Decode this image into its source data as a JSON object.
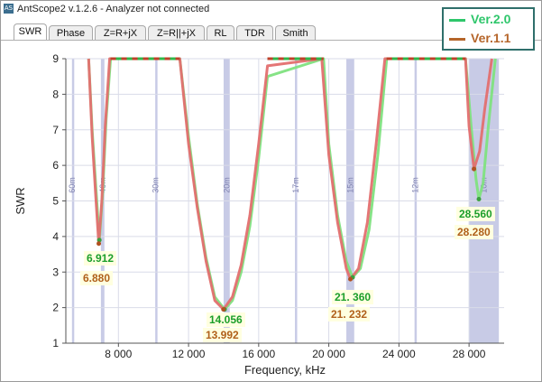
{
  "window": {
    "title": "AntScope2 v.1.2.6 - Analyzer not connected",
    "icon_text": "AS"
  },
  "tabs": [
    {
      "label": "SWR",
      "active": true
    },
    {
      "label": "Phase",
      "active": false
    },
    {
      "label": "Z=R+jX",
      "active": false
    },
    {
      "label": "Z=R||+jX",
      "active": false
    },
    {
      "label": "RL",
      "active": false
    },
    {
      "label": "TDR",
      "active": false
    },
    {
      "label": "Smith",
      "active": false
    }
  ],
  "legend": {
    "items": [
      {
        "label": "Ver.2.0",
        "color": "#2ec66b"
      },
      {
        "label": "Ver.1.1",
        "color": "#b5652a"
      }
    ]
  },
  "annotations": [
    {
      "id": "a1",
      "text": "6.912",
      "version": "v2"
    },
    {
      "id": "a2",
      "text": "6.880",
      "version": "v1"
    },
    {
      "id": "a3",
      "text": "14.056",
      "version": "v2"
    },
    {
      "id": "a4",
      "text": "13.992",
      "version": "v1"
    },
    {
      "id": "a5",
      "text": "21. 360",
      "version": "v2"
    },
    {
      "id": "a6",
      "text": "21. 232",
      "version": "v1"
    },
    {
      "id": "a7",
      "text": "28.560",
      "version": "v2"
    },
    {
      "id": "a8",
      "text": "28.280",
      "version": "v1"
    }
  ],
  "chart_data": {
    "type": "line",
    "title": "",
    "xlabel": "Frequency, kHz",
    "ylabel": "SWR",
    "xlim": [
      5000,
      30000
    ],
    "ylim": [
      1,
      9
    ],
    "x_ticks": [
      8000,
      12000,
      16000,
      20000,
      24000,
      28000
    ],
    "x_tick_labels": [
      "8 000",
      "12 000",
      "16 000",
      "20 000",
      "24 000",
      "28 000"
    ],
    "y_ticks": [
      1,
      2,
      3,
      4,
      5,
      6,
      7,
      8,
      9
    ],
    "grid": true,
    "bands": [
      {
        "label": "60m",
        "start": 5350,
        "end": 5370
      },
      {
        "label": "40m",
        "start": 7000,
        "end": 7200
      },
      {
        "label": "30m",
        "start": 10100,
        "end": 10150
      },
      {
        "label": "20m",
        "start": 14000,
        "end": 14350
      },
      {
        "label": "17m",
        "start": 18068,
        "end": 18168
      },
      {
        "label": "15m",
        "start": 21000,
        "end": 21450
      },
      {
        "label": "12m",
        "start": 24890,
        "end": 24990
      },
      {
        "label": "10m",
        "start": 28000,
        "end": 29700
      }
    ],
    "band_color": "#c8cbe6",
    "series": [
      {
        "name": "Ver.2.0",
        "color": "#7fe27f",
        "x": [
          6300,
          6500,
          6700,
          6912,
          7100,
          7300,
          7550,
          11500,
          12000,
          12500,
          13000,
          13500,
          14056,
          14500,
          15000,
          15500,
          16000,
          16500,
          19700,
          20000,
          20500,
          21000,
          21360,
          21800,
          22300,
          22800,
          23300,
          27800,
          28100,
          28400,
          28560,
          28800,
          29100,
          29500
        ],
        "y": [
          9.0,
          7.0,
          5.5,
          3.9,
          5.2,
          7.3,
          9.0,
          9.0,
          6.8,
          4.9,
          3.4,
          2.3,
          1.95,
          2.2,
          3.0,
          4.3,
          6.2,
          8.5,
          9.0,
          6.6,
          4.6,
          3.3,
          2.85,
          3.1,
          4.2,
          6.3,
          9.0,
          9.0,
          7.2,
          5.6,
          5.05,
          5.5,
          7.1,
          9.0
        ]
      },
      {
        "name": "Ver.1.1",
        "color": "#e36f6f",
        "x": [
          6300,
          6500,
          6700,
          6880,
          7050,
          7250,
          7500,
          11500,
          12000,
          12500,
          13000,
          13500,
          13992,
          14500,
          15000,
          15500,
          16000,
          16500,
          19600,
          20000,
          20500,
          21000,
          21232,
          21700,
          22200,
          22700,
          23200,
          27800,
          28000,
          28280,
          28600,
          28900,
          29300
        ],
        "y": [
          9.0,
          6.8,
          5.2,
          3.8,
          5.0,
          7.1,
          9.0,
          9.0,
          6.6,
          4.8,
          3.3,
          2.2,
          1.95,
          2.3,
          3.2,
          4.6,
          6.6,
          8.8,
          9.0,
          6.3,
          4.4,
          3.1,
          2.8,
          3.1,
          4.4,
          6.6,
          9.0,
          9.0,
          7.1,
          5.9,
          6.4,
          7.6,
          9.0
        ]
      }
    ]
  }
}
